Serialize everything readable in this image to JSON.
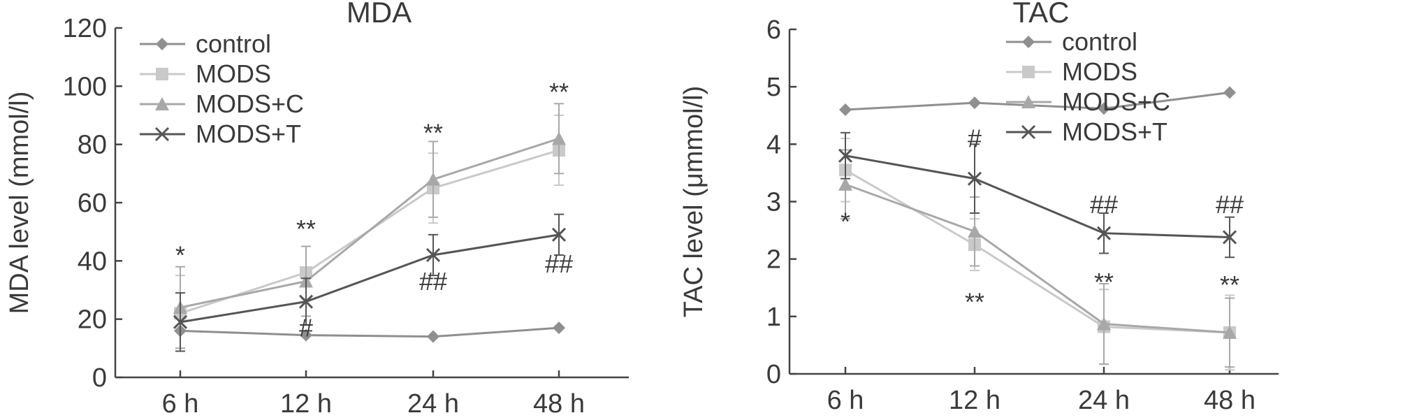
{
  "charts": [
    {
      "type": "line",
      "title": "MDA",
      "xlabel": "",
      "ylabel": "MDA level (mmol/l)",
      "categories": [
        "6 h",
        "12 h",
        "24 h",
        "48 h"
      ],
      "ylim": [
        0,
        120
      ],
      "yticks": [
        0,
        20,
        40,
        60,
        80,
        100,
        120
      ],
      "legend_position": "top-left",
      "series": [
        {
          "name": "control",
          "marker": "diamond",
          "color": "#8f8f8f",
          "values": [
            16,
            14.5,
            14,
            17
          ],
          "errors": [
            0,
            0,
            0,
            0
          ]
        },
        {
          "name": "MODS",
          "marker": "square",
          "color": "#c9c9c9",
          "values": [
            22,
            36,
            65,
            78
          ],
          "errors": [
            13,
            9,
            12,
            12
          ]
        },
        {
          "name": "MODS+C",
          "marker": "triangle",
          "color": "#a8a8a8",
          "values": [
            24,
            33,
            68,
            82
          ],
          "errors": [
            14,
            12,
            13,
            12
          ]
        },
        {
          "name": "MODS+T",
          "marker": "x",
          "color": "#555555",
          "values": [
            19,
            26,
            42,
            49
          ],
          "errors": [
            10,
            8,
            7,
            7
          ]
        }
      ],
      "annotations": [
        {
          "text": "*",
          "category": "6 h",
          "y": 39
        },
        {
          "text": "**",
          "category": "12 h",
          "y": 48
        },
        {
          "text": "#",
          "category": "12 h",
          "y": 14
        },
        {
          "text": "**",
          "category": "24 h",
          "y": 81
        },
        {
          "text": "##",
          "category": "24 h",
          "y": 30
        },
        {
          "text": "**",
          "category": "48 h",
          "y": 95
        },
        {
          "text": "##",
          "category": "48 h",
          "y": 36
        }
      ]
    },
    {
      "type": "line",
      "title": "TAC",
      "xlabel": "",
      "ylabel": "TAC level (μmmol/l)",
      "categories": [
        "6 h",
        "12 h",
        "24 h",
        "48 h"
      ],
      "ylim": [
        0,
        6
      ],
      "yticks": [
        0,
        1,
        2,
        3,
        4,
        5,
        6
      ],
      "legend_position": "top-right",
      "series": [
        {
          "name": "control",
          "marker": "diamond",
          "color": "#8f8f8f",
          "values": [
            4.6,
            4.72,
            4.62,
            4.9
          ],
          "errors": [
            0,
            0,
            0,
            0
          ]
        },
        {
          "name": "MODS",
          "marker": "square",
          "color": "#c9c9c9",
          "values": [
            3.55,
            2.25,
            0.82,
            0.72
          ],
          "errors": [
            0.55,
            0.45,
            0.65,
            0.65
          ]
        },
        {
          "name": "MODS+C",
          "marker": "triangle",
          "color": "#a8a8a8",
          "values": [
            3.3,
            2.48,
            0.87,
            0.72
          ],
          "errors": [
            0.6,
            0.6,
            0.7,
            0.6
          ]
        },
        {
          "name": "MODS+T",
          "marker": "x",
          "color": "#555555",
          "values": [
            3.8,
            3.4,
            2.45,
            2.38
          ],
          "errors": [
            0.4,
            0.6,
            0.35,
            0.35
          ]
        }
      ],
      "annotations": [
        {
          "text": "*",
          "category": "6 h",
          "y": 2.5
        },
        {
          "text": "#",
          "category": "12 h",
          "y": 3.95
        },
        {
          "text": "**",
          "category": "12 h",
          "y": 1.1
        },
        {
          "text": "##",
          "category": "24 h",
          "y": 2.8
        },
        {
          "text": "**",
          "category": "24 h",
          "y": 1.45
        },
        {
          "text": "##",
          "category": "48 h",
          "y": 2.8
        },
        {
          "text": "**",
          "category": "48 h",
          "y": 1.4
        }
      ]
    }
  ]
}
